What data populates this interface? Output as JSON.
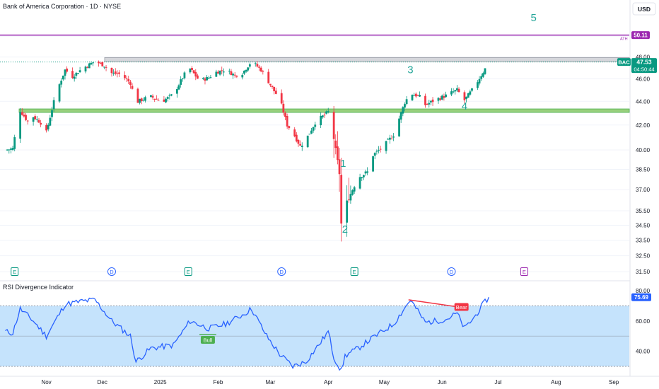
{
  "header": {
    "symbol_title": "Bank of America Corporation · 1D · NYSE",
    "currency": "USD"
  },
  "colors": {
    "up": "#089981",
    "down": "#f23645",
    "ath_line": "#9c27b0",
    "support_zone": "#7ec45d",
    "resistance_zone": "#b2b5be",
    "wave": "#26a69a",
    "rsi_line": "#2962ff",
    "rsi_band": "#bbdefb",
    "bull": "#4caf50",
    "bear": "#f23645"
  },
  "price_axis": {
    "ticks": [
      "31.50",
      "32.50",
      "33.50",
      "34.50",
      "35.50",
      "37.00",
      "38.50",
      "40.00",
      "42.00",
      "44.00",
      "46.00",
      "48.00",
      "50.00"
    ],
    "ath_label": "50.11",
    "ath_tag": "ATH",
    "last_price": "47.53",
    "ticker": "BAC",
    "countdown": "04:50:44"
  },
  "time_axis": {
    "labels": [
      "Nov",
      "Dec",
      "2025",
      "Feb",
      "Mar",
      "Apr",
      "May",
      "Jun",
      "Jul",
      "Aug",
      "Sep"
    ]
  },
  "events": [
    {
      "type": "E",
      "date": "Oct 15"
    },
    {
      "type": "D",
      "date": "Dec 6"
    },
    {
      "type": "E",
      "date": "Jan 16"
    },
    {
      "type": "D",
      "date": "Mar 7"
    },
    {
      "type": "E",
      "date": "Apr 15"
    },
    {
      "type": "D",
      "date": "Jun 6"
    },
    {
      "type": "E",
      "date": "Jul 15"
    }
  ],
  "wave_labels": [
    {
      "text": "1",
      "date": "Apr 9",
      "price": 38.7
    },
    {
      "text": "2",
      "date": "Apr 10",
      "price": 34.0
    },
    {
      "text": "3",
      "date": "May 15",
      "price": 46.5
    },
    {
      "text": "4",
      "date": "Jun 13",
      "price": 43.3
    },
    {
      "text": "5",
      "date": "Jul 20",
      "price": 51.5
    }
  ],
  "zones": {
    "support": {
      "low": 43.05,
      "high": 43.35
    },
    "resistance": {
      "low": 47.55,
      "high": 47.95
    },
    "ath": 50.11
  },
  "rsi": {
    "title": "RSI Divergence Indicator",
    "ticks": [
      "40.00",
      "60.00",
      "80.00"
    ],
    "last": "75.69",
    "bull_label": "Bull",
    "bear_label": "Bear",
    "overbought": 70,
    "middle": 50,
    "oversold": 30
  },
  "chart_data": {
    "type": "candlestick",
    "y_range": [
      31.2,
      50.5
    ],
    "rsi_range": [
      26,
      82
    ],
    "price_series": [
      {
        "date": "Oct 10",
        "close": 40.0
      },
      {
        "date": "Oct 14",
        "close": 40.1
      },
      {
        "date": "Oct 16",
        "close": 41.8
      },
      {
        "date": "Oct 18",
        "close": 43.2
      },
      {
        "date": "Oct 22",
        "close": 42.3
      },
      {
        "date": "Oct 25",
        "close": 42.7
      },
      {
        "date": "Oct 29",
        "close": 42.2
      },
      {
        "date": "Nov 1",
        "close": 41.4
      },
      {
        "date": "Nov 6",
        "close": 44.6
      },
      {
        "date": "Nov 11",
        "close": 46.8
      },
      {
        "date": "Nov 15",
        "close": 46.2
      },
      {
        "date": "Nov 20",
        "close": 46.9
      },
      {
        "date": "Nov 25",
        "close": 47.4
      },
      {
        "date": "Nov 27",
        "close": 47.6
      },
      {
        "date": "Dec 2",
        "close": 47.2
      },
      {
        "date": "Dec 6",
        "close": 46.5
      },
      {
        "date": "Dec 11",
        "close": 46.4
      },
      {
        "date": "Dec 16",
        "close": 45.6
      },
      {
        "date": "Dec 19",
        "close": 43.9
      },
      {
        "date": "Dec 23",
        "close": 44.2
      },
      {
        "date": "Dec 27",
        "close": 44.4
      },
      {
        "date": "Jan 2",
        "close": 44.0
      },
      {
        "date": "Jan 8",
        "close": 44.6
      },
      {
        "date": "Jan 14",
        "close": 46.4
      },
      {
        "date": "Jan 17",
        "close": 46.9
      },
      {
        "date": "Jan 22",
        "close": 45.8
      },
      {
        "date": "Jan 27",
        "close": 46.1
      },
      {
        "date": "Jan 31",
        "close": 46.6
      },
      {
        "date": "Feb 5",
        "close": 46.8
      },
      {
        "date": "Feb 10",
        "close": 46.3
      },
      {
        "date": "Feb 14",
        "close": 46.5
      },
      {
        "date": "Feb 19",
        "close": 47.6
      },
      {
        "date": "Feb 24",
        "close": 46.8
      },
      {
        "date": "Feb 27",
        "close": 46.0
      },
      {
        "date": "Mar 3",
        "close": 44.9
      },
      {
        "date": "Mar 6",
        "close": 44.2
      },
      {
        "date": "Mar 10",
        "close": 42.0
      },
      {
        "date": "Mar 13",
        "close": 41.4
      },
      {
        "date": "Mar 17",
        "close": 40.3
      },
      {
        "date": "Mar 20",
        "close": 40.8
      },
      {
        "date": "Mar 25",
        "close": 42.2
      },
      {
        "date": "Mar 28",
        "close": 42.6
      },
      {
        "date": "Apr 1",
        "close": 43.1
      },
      {
        "date": "Apr 3",
        "close": 41.7
      },
      {
        "date": "Apr 4",
        "close": 40.9
      },
      {
        "date": "Apr 7",
        "close": 38.2
      },
      {
        "date": "Apr 8",
        "close": 34.6
      },
      {
        "date": "Apr 9",
        "close": 36.5
      },
      {
        "date": "Apr 10",
        "close": 35.8
      },
      {
        "date": "Apr 14",
        "close": 37.0
      },
      {
        "date": "Apr 17",
        "close": 37.9
      },
      {
        "date": "Apr 22",
        "close": 38.3
      },
      {
        "date": "Apr 25",
        "close": 39.6
      },
      {
        "date": "Apr 30",
        "close": 40.2
      },
      {
        "date": "May 6",
        "close": 41.2
      },
      {
        "date": "May 12",
        "close": 43.9
      },
      {
        "date": "May 15",
        "close": 44.7
      },
      {
        "date": "May 20",
        "close": 44.4
      },
      {
        "date": "May 23",
        "close": 43.7
      },
      {
        "date": "May 28",
        "close": 44.1
      },
      {
        "date": "Jun 3",
        "close": 44.5
      },
      {
        "date": "Jun 9",
        "close": 45.0
      },
      {
        "date": "Jun 13",
        "close": 44.1
      },
      {
        "date": "Jun 18",
        "close": 45.2
      },
      {
        "date": "Jun 23",
        "close": 46.6
      },
      {
        "date": "Jun 26",
        "close": 47.53
      }
    ],
    "rsi_series": [
      {
        "date": "Oct 10",
        "value": 53
      },
      {
        "date": "Oct 14",
        "value": 52
      },
      {
        "date": "Oct 18",
        "value": 68
      },
      {
        "date": "Oct 25",
        "value": 60
      },
      {
        "date": "Nov 1",
        "value": 50
      },
      {
        "date": "Nov 11",
        "value": 71
      },
      {
        "date": "Nov 20",
        "value": 73
      },
      {
        "date": "Nov 27",
        "value": 74
      },
      {
        "date": "Dec 6",
        "value": 60
      },
      {
        "date": "Dec 16",
        "value": 50
      },
      {
        "date": "Dec 19",
        "value": 33
      },
      {
        "date": "Dec 27",
        "value": 42
      },
      {
        "date": "Jan 8",
        "value": 44
      },
      {
        "date": "Jan 17",
        "value": 60
      },
      {
        "date": "Jan 27",
        "value": 55
      },
      {
        "date": "Feb 5",
        "value": 58
      },
      {
        "date": "Feb 14",
        "value": 64
      },
      {
        "date": "Feb 19",
        "value": 68
      },
      {
        "date": "Feb 27",
        "value": 50
      },
      {
        "date": "Mar 6",
        "value": 38
      },
      {
        "date": "Mar 13",
        "value": 30
      },
      {
        "date": "Mar 20",
        "value": 33
      },
      {
        "date": "Mar 28",
        "value": 46
      },
      {
        "date": "Apr 1",
        "value": 53
      },
      {
        "date": "Apr 4",
        "value": 36
      },
      {
        "date": "Apr 8",
        "value": 27
      },
      {
        "date": "Apr 10",
        "value": 37
      },
      {
        "date": "Apr 17",
        "value": 42
      },
      {
        "date": "Apr 25",
        "value": 49
      },
      {
        "date": "May 6",
        "value": 58
      },
      {
        "date": "May 15",
        "value": 74
      },
      {
        "date": "May 23",
        "value": 59
      },
      {
        "date": "Jun 3",
        "value": 61
      },
      {
        "date": "Jun 9",
        "value": 65
      },
      {
        "date": "Jun 13",
        "value": 55
      },
      {
        "date": "Jun 18",
        "value": 62
      },
      {
        "date": "Jun 23",
        "value": 71
      },
      {
        "date": "Jun 26",
        "value": 75.69
      }
    ],
    "divergences": [
      {
        "type": "bull",
        "from": {
          "date": "Jan 22",
          "value": 51
        },
        "to": {
          "date": "Jan 31",
          "value": 51
        }
      },
      {
        "type": "bear",
        "from": {
          "date": "May 14",
          "value": 74
        },
        "to": {
          "date": "Jun 11",
          "value": 69
        }
      }
    ]
  }
}
